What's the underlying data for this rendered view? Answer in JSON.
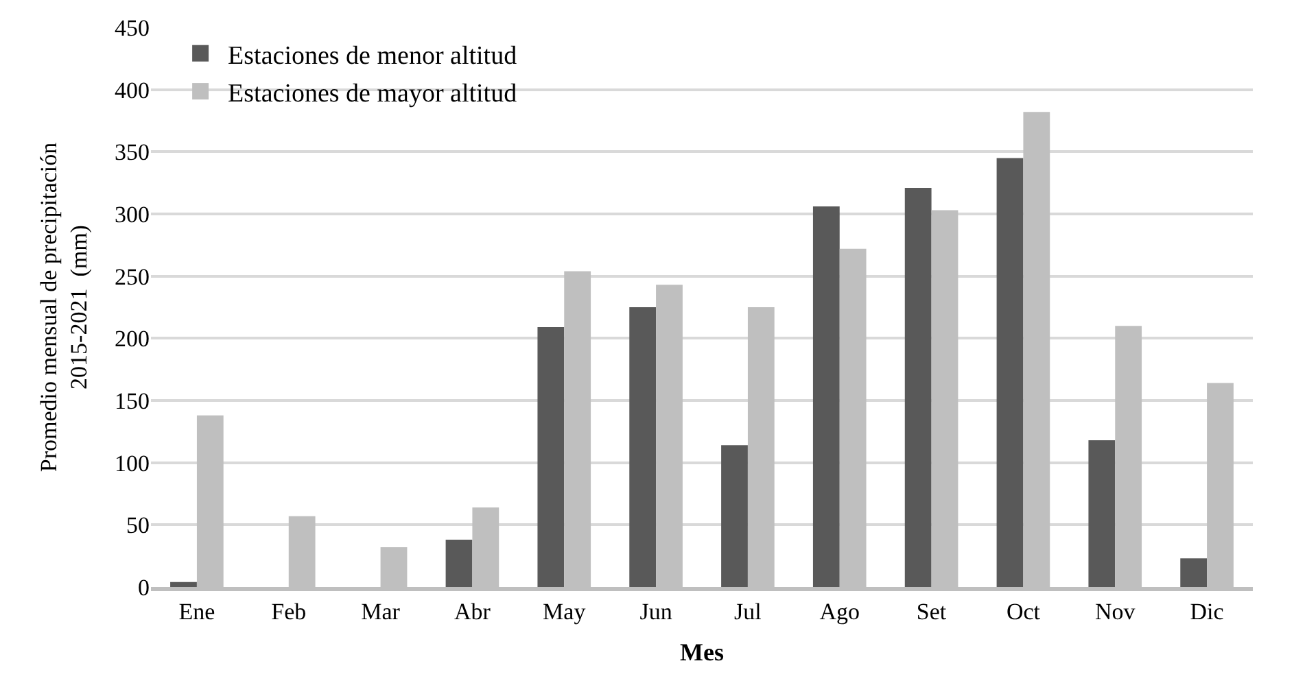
{
  "chart_data": {
    "type": "bar",
    "xlabel": "Mes",
    "ylabel": "Promedio mensual de precipitación\n2015-2021  (mm)",
    "categories": [
      "Ene",
      "Feb",
      "Mar",
      "Abr",
      "May",
      "Jun",
      "Jul",
      "Ago",
      "Set",
      "Oct",
      "Nov",
      "Dic"
    ],
    "series": [
      {
        "name": "Estaciones de menor altitud",
        "color": "#595959",
        "values": [
          4,
          0,
          0,
          38,
          209,
          225,
          114,
          306,
          321,
          345,
          118,
          23
        ]
      },
      {
        "name": "Estaciones de mayor altitud",
        "color": "#bfbfbf",
        "values": [
          138,
          57,
          32,
          64,
          254,
          243,
          225,
          272,
          303,
          382,
          210,
          164
        ]
      }
    ],
    "ylim": [
      0,
      450
    ],
    "yticks": [
      0,
      50,
      100,
      150,
      200,
      250,
      300,
      350,
      400,
      450
    ],
    "grid": "y",
    "legend": "top left"
  }
}
